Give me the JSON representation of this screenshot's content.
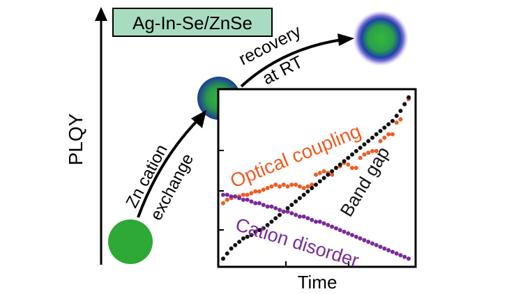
{
  "title_box": {
    "text": "Ag-In-Se/ZnSe",
    "fill": "#a8dcc0"
  },
  "y_axis_label": "PLQY",
  "x_axis_label": "Time",
  "arrow1_labels": [
    "Zn cation",
    "exchange"
  ],
  "arrow2_labels": [
    "recovery",
    "at RT"
  ],
  "colors": {
    "core": "#2ea836",
    "shell": "#1a3c9a",
    "glow": "#7c6cd8",
    "optical": "#f05a22",
    "band": "#111111",
    "cation": "#7a2a9a"
  },
  "chart_data": {
    "type": "scatter",
    "xlabel": "Time",
    "ylabel": "",
    "series": [
      {
        "name": "Optical coupling",
        "values": [
          0.35,
          0.37,
          0.38,
          0.39,
          0.39,
          0.4,
          0.4,
          0.41,
          0.42,
          0.42,
          0.43,
          0.44,
          0.45,
          0.46,
          0.45,
          0.46,
          0.45,
          0.46,
          0.46,
          0.45,
          0.44,
          0.45,
          0.46,
          0.52,
          0.53,
          0.54,
          0.53,
          0.52,
          0.56,
          0.57,
          0.59,
          0.58,
          0.56,
          0.56,
          0.62,
          0.64,
          0.65,
          0.66,
          0.66,
          0.72,
          0.74,
          0.76,
          0.76,
          0.83,
          0.85,
          0.94,
          0.97
        ]
      },
      {
        "name": "Band gap",
        "values": [
          0.02,
          0.05,
          0.08,
          0.1,
          0.12,
          0.14,
          0.15,
          0.16,
          0.18,
          0.19,
          0.2,
          0.22,
          0.24,
          0.26,
          0.28,
          0.3,
          0.32,
          0.34,
          0.36,
          0.38,
          0.4,
          0.42,
          0.44,
          0.46,
          0.48,
          0.5,
          0.52,
          0.54,
          0.56,
          0.58,
          0.6,
          0.62,
          0.64,
          0.66,
          0.68,
          0.7,
          0.72,
          0.74,
          0.76,
          0.78,
          0.8,
          0.82,
          0.84,
          0.87,
          0.9,
          0.94,
          0.98
        ]
      },
      {
        "name": "Cation disorder",
        "values": [
          0.4,
          0.4,
          0.39,
          0.39,
          0.38,
          0.37,
          0.37,
          0.36,
          0.35,
          0.35,
          0.34,
          0.33,
          0.33,
          0.32,
          0.31,
          0.3,
          0.3,
          0.29,
          0.28,
          0.27,
          0.27,
          0.26,
          0.25,
          0.24,
          0.24,
          0.23,
          0.22,
          0.21,
          0.2,
          0.19,
          0.18,
          0.17,
          0.16,
          0.15,
          0.14,
          0.13,
          0.12,
          0.11,
          0.1,
          0.09,
          0.08,
          0.07,
          0.06,
          0.05,
          0.04,
          0.03,
          0.02
        ]
      }
    ]
  }
}
